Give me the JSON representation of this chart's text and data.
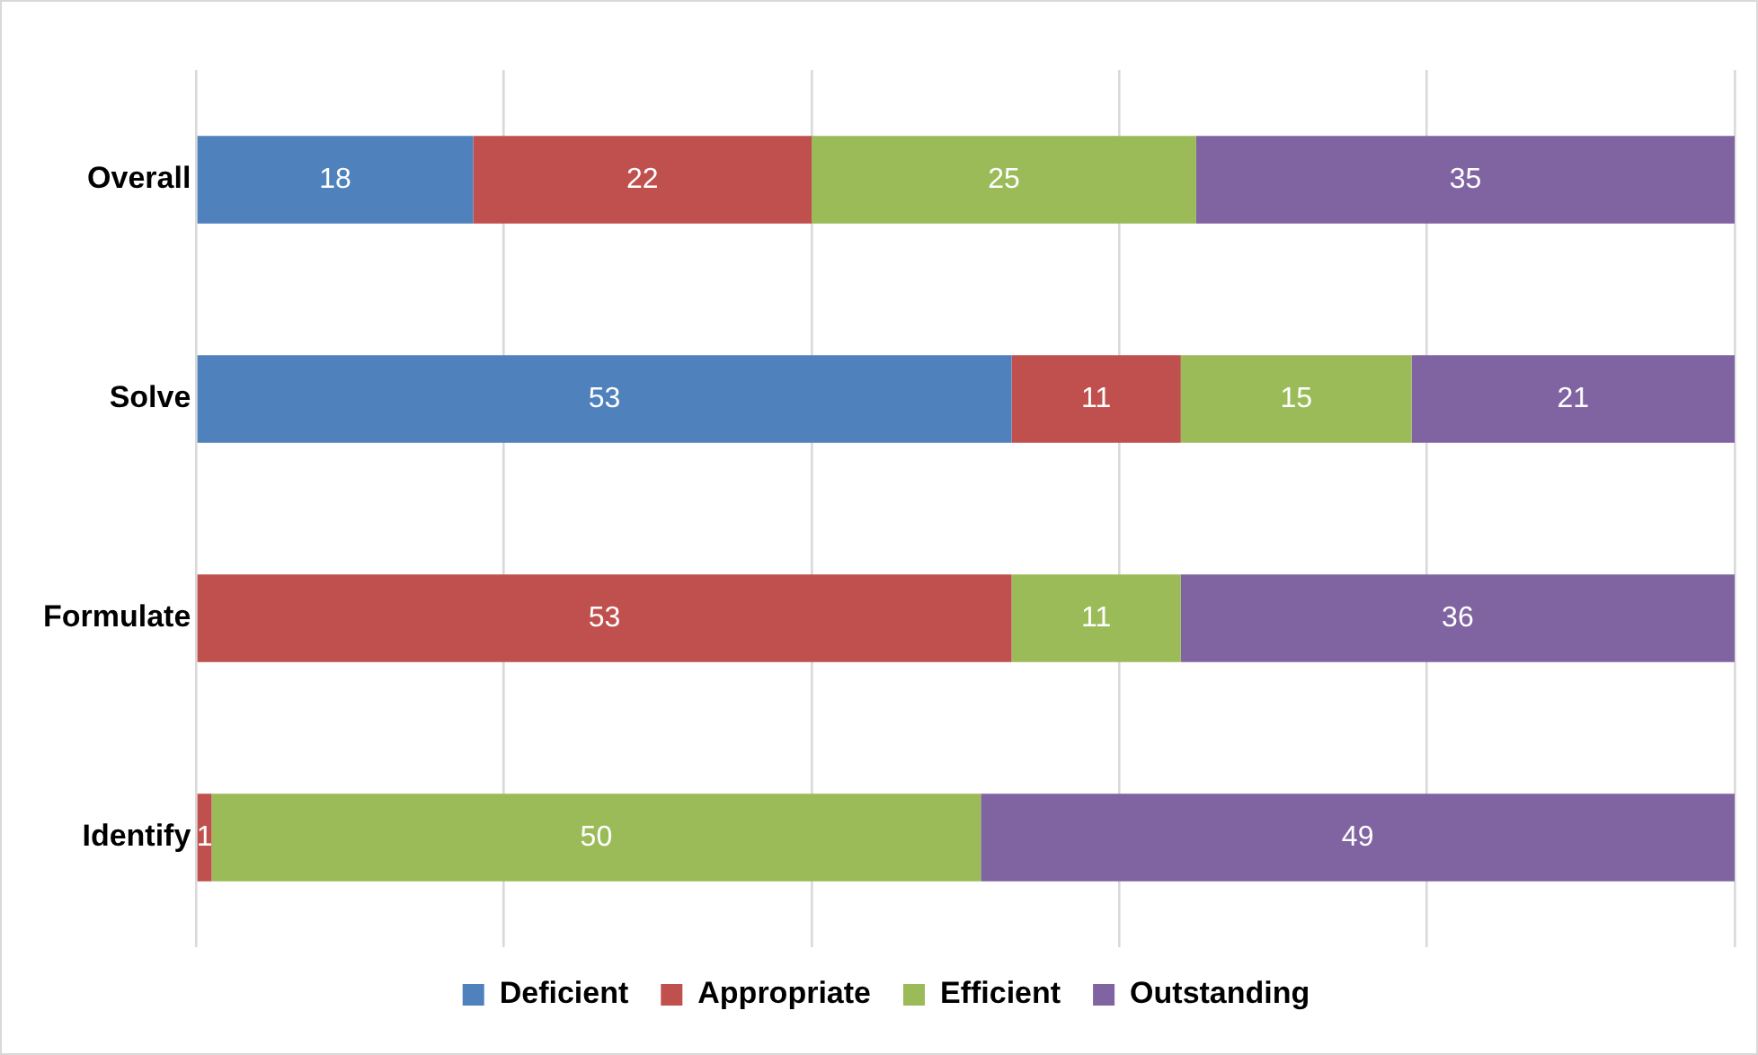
{
  "chart_data": {
    "type": "bar",
    "orientation": "horizontal",
    "stacked": true,
    "categories": [
      "Overall",
      "Solve",
      "Formulate",
      "Identify"
    ],
    "series": [
      {
        "name": "Deficient",
        "color": "#4f81bd",
        "values": [
          18,
          53,
          null,
          null
        ]
      },
      {
        "name": "Appropriate",
        "color": "#c0504d",
        "values": [
          22,
          11,
          53,
          1
        ]
      },
      {
        "name": "Efficient",
        "color": "#9bbb59",
        "values": [
          25,
          15,
          11,
          50
        ]
      },
      {
        "name": "Outstanding",
        "color": "#8064a2",
        "values": [
          35,
          21,
          36,
          49
        ]
      }
    ],
    "xlim": [
      0,
      100
    ],
    "xticks": [
      {
        "value": 0,
        "label": null
      },
      {
        "value": 20,
        "label": null
      },
      {
        "value": 40,
        "label": null
      },
      {
        "value": 60,
        "label": null
      },
      {
        "value": 80,
        "label": null
      },
      {
        "value": 100,
        "label": null
      }
    ],
    "grid": "x",
    "tick_labels": "y",
    "legend": "bottom",
    "data_labels": true
  }
}
